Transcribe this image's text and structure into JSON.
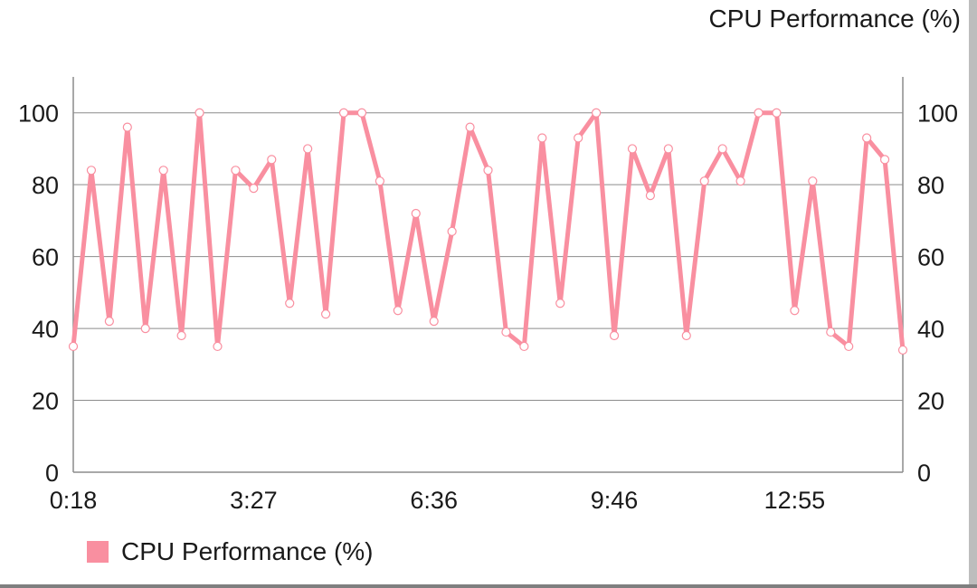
{
  "chart_data": {
    "type": "line",
    "title": "CPU Performance (%)",
    "x_tick_labels": [
      "0:18",
      "3:27",
      "6:36",
      "9:46",
      "12:55"
    ],
    "x_tick_indices": [
      0,
      10,
      20,
      30,
      40
    ],
    "ylim": [
      0,
      110
    ],
    "y_ticks": [
      0,
      20,
      40,
      60,
      80,
      100
    ],
    "y_axis_left": true,
    "y_axis_right": true,
    "grid": true,
    "legend_position": "bottom-left",
    "series": [
      {
        "name": "CPU Performance (%)",
        "color": "#f98fa0",
        "values": [
          35,
          84,
          42,
          96,
          40,
          84,
          38,
          100,
          35,
          84,
          79,
          87,
          47,
          90,
          44,
          100,
          100,
          81,
          45,
          72,
          42,
          67,
          96,
          84,
          39,
          35,
          93,
          47,
          93,
          100,
          38,
          90,
          77,
          90,
          38,
          81,
          90,
          81,
          100,
          100,
          45,
          81,
          39,
          35,
          93,
          87,
          34
        ]
      }
    ]
  }
}
